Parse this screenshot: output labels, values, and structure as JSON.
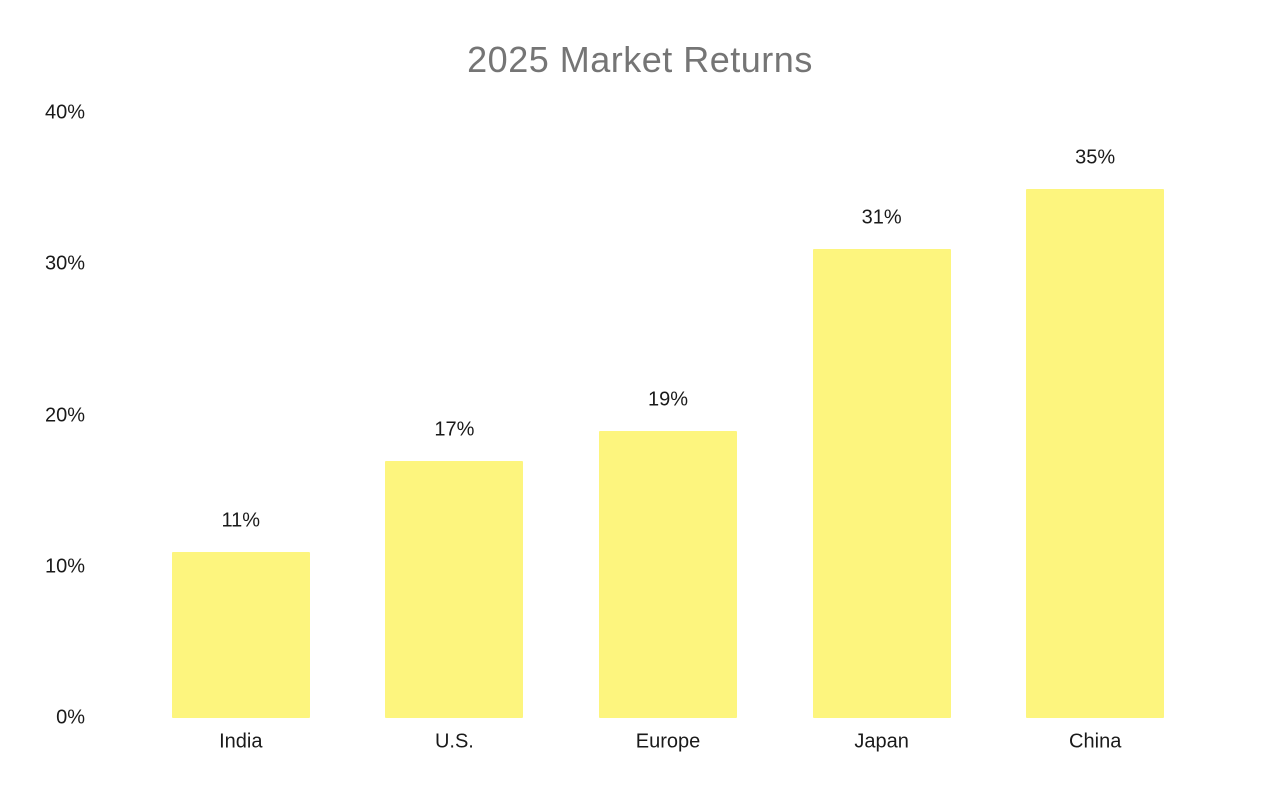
{
  "chart_data": {
    "type": "bar",
    "title": "2025 Market Returns",
    "categories": [
      "India",
      "U.S.",
      "Europe",
      "Japan",
      "China"
    ],
    "values": [
      11,
      17,
      19,
      31,
      35
    ],
    "value_labels": [
      "11%",
      "17%",
      "19%",
      "31%",
      "35%"
    ],
    "y_ticks": [
      {
        "value": 0,
        "label": "0%"
      },
      {
        "value": 10,
        "label": "10%"
      },
      {
        "value": 20,
        "label": "20%"
      },
      {
        "value": 30,
        "label": "30%"
      },
      {
        "value": 40,
        "label": "40%"
      }
    ],
    "ylim": [
      0,
      40
    ],
    "xlabel": "",
    "ylabel": "",
    "grid": false,
    "legend": false,
    "colors": {
      "bar_fill": "#FDF57E",
      "title_text": "#757575",
      "label_text": "#1a1a1a",
      "background": "#ffffff"
    }
  }
}
